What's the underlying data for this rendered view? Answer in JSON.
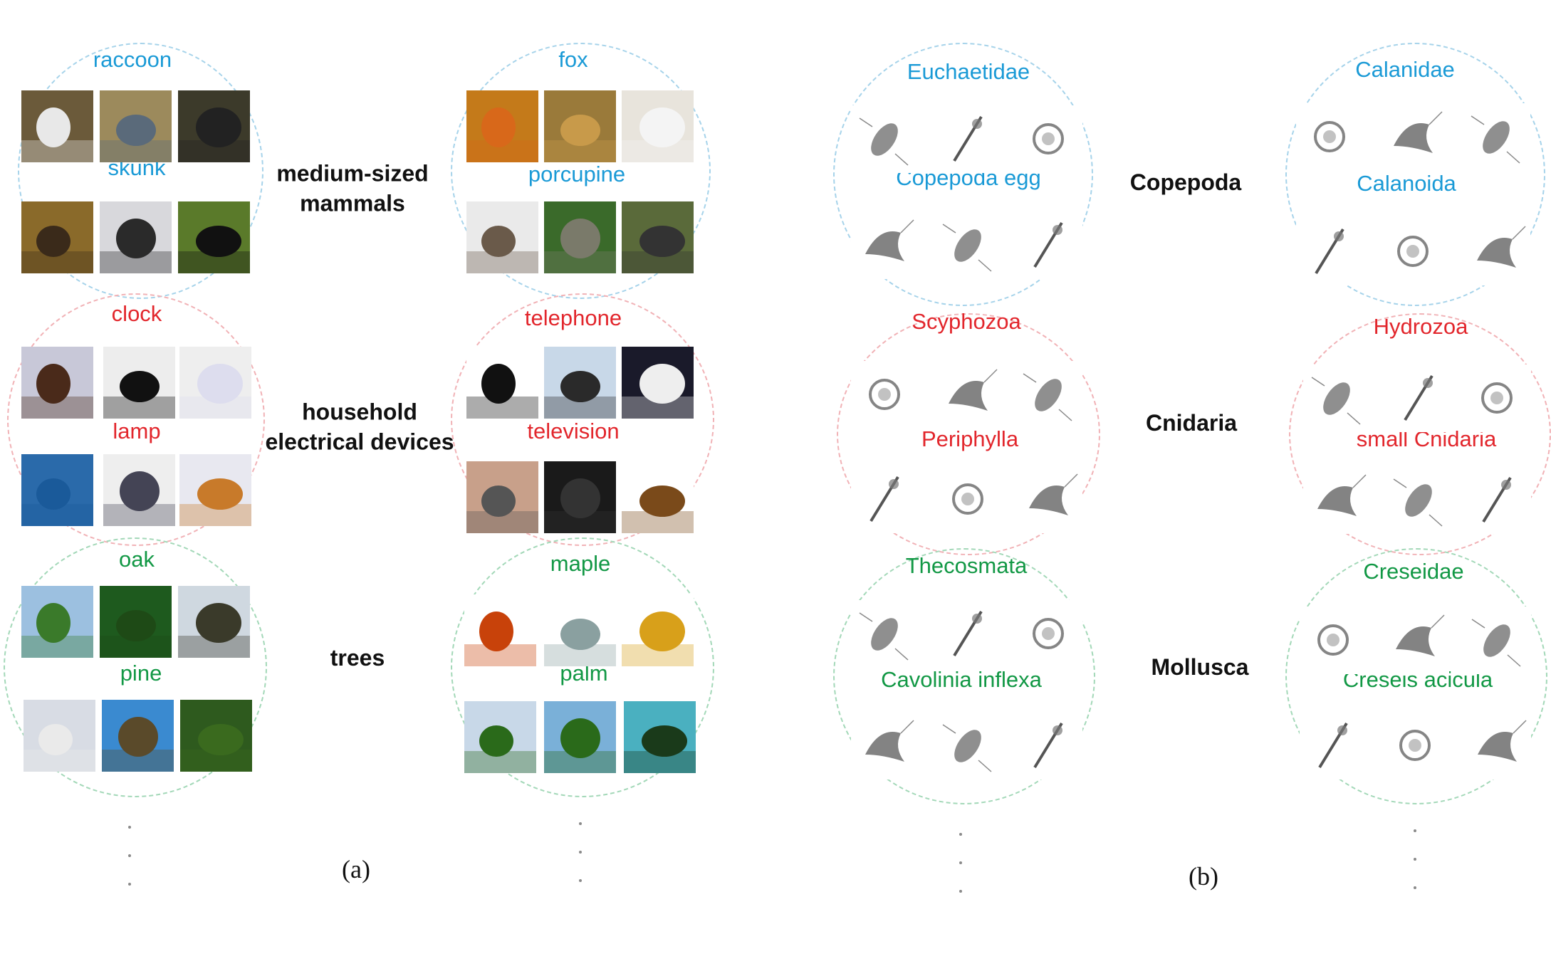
{
  "panels": {
    "a": {
      "caption": "(a)",
      "groups": [
        {
          "name": [
            "medium-sized",
            "mammals"
          ],
          "left": {
            "top_label": "raccoon",
            "bottom_label": "skunk"
          },
          "right": {
            "top_label": "fox",
            "bottom_label": "porcupine"
          }
        },
        {
          "name": [
            "household",
            "electrical devices"
          ],
          "left": {
            "top_label": "clock",
            "bottom_label": "lamp"
          },
          "right": {
            "top_label": "telephone",
            "bottom_label": "television"
          }
        },
        {
          "name": [
            "trees"
          ],
          "left": {
            "top_label": "oak",
            "bottom_label": "pine"
          },
          "right": {
            "top_label": "maple",
            "bottom_label": "palm"
          }
        }
      ]
    },
    "b": {
      "caption": "(b)",
      "groups": [
        {
          "name": [
            "Copepoda"
          ],
          "left": {
            "top_label": "Euchaetidae",
            "bottom_label": "Copepoda egg"
          },
          "right": {
            "top_label": "Calanidae",
            "bottom_label": "Calanoida"
          }
        },
        {
          "name": [
            "Cnidaria"
          ],
          "left": {
            "top_label": "Scyphozoa",
            "bottom_label": "Periphylla"
          },
          "right": {
            "top_label": "Hydrozoa",
            "bottom_label": "small Cnidaria"
          }
        },
        {
          "name": [
            "Mollusca"
          ],
          "left": {
            "top_label": "Thecosmata",
            "bottom_label": "Cavolinia inflexa"
          },
          "right": {
            "top_label": "Creseidae",
            "bottom_label": "Creseis acicula"
          }
        }
      ]
    }
  },
  "colors": {
    "row1": "#1a9ad6",
    "row2": "#e2262c",
    "row3": "#129845",
    "group_text": "#111111"
  },
  "icons": {
    "photo": "photo-thumbnail",
    "plankton": "plankton-image"
  }
}
